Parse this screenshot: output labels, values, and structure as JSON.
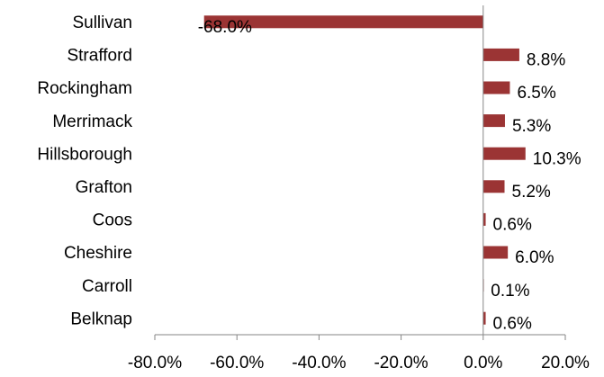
{
  "colors": {
    "bar": "#9b3434",
    "axis": "#868686",
    "text": "#000000"
  },
  "chart_data": {
    "type": "bar",
    "orientation": "horizontal",
    "categories": [
      "Sullivan",
      "Strafford",
      "Rockingham",
      "Merrimack",
      "Hillsborough",
      "Grafton",
      "Coos",
      "Cheshire",
      "Carroll",
      "Belknap"
    ],
    "values": [
      -68.0,
      8.8,
      6.5,
      5.3,
      10.3,
      5.2,
      0.6,
      6.0,
      0.1,
      0.6
    ],
    "data_labels": [
      "-68.0%",
      "8.8%",
      "6.5%",
      "5.3%",
      "10.3%",
      "5.2%",
      "0.6%",
      "6.0%",
      "0.1%",
      "0.6%"
    ],
    "x_tick_values": [
      -80,
      -60,
      -40,
      -20,
      0,
      20
    ],
    "x_tick_labels": [
      "-80.0%",
      "-60.0%",
      "-40.0%",
      "-20.0%",
      "0.0%",
      "20.0%"
    ],
    "xlim": [
      -80,
      20
    ],
    "grid": false,
    "legend": "none",
    "title": "",
    "xlabel": "",
    "ylabel": ""
  }
}
